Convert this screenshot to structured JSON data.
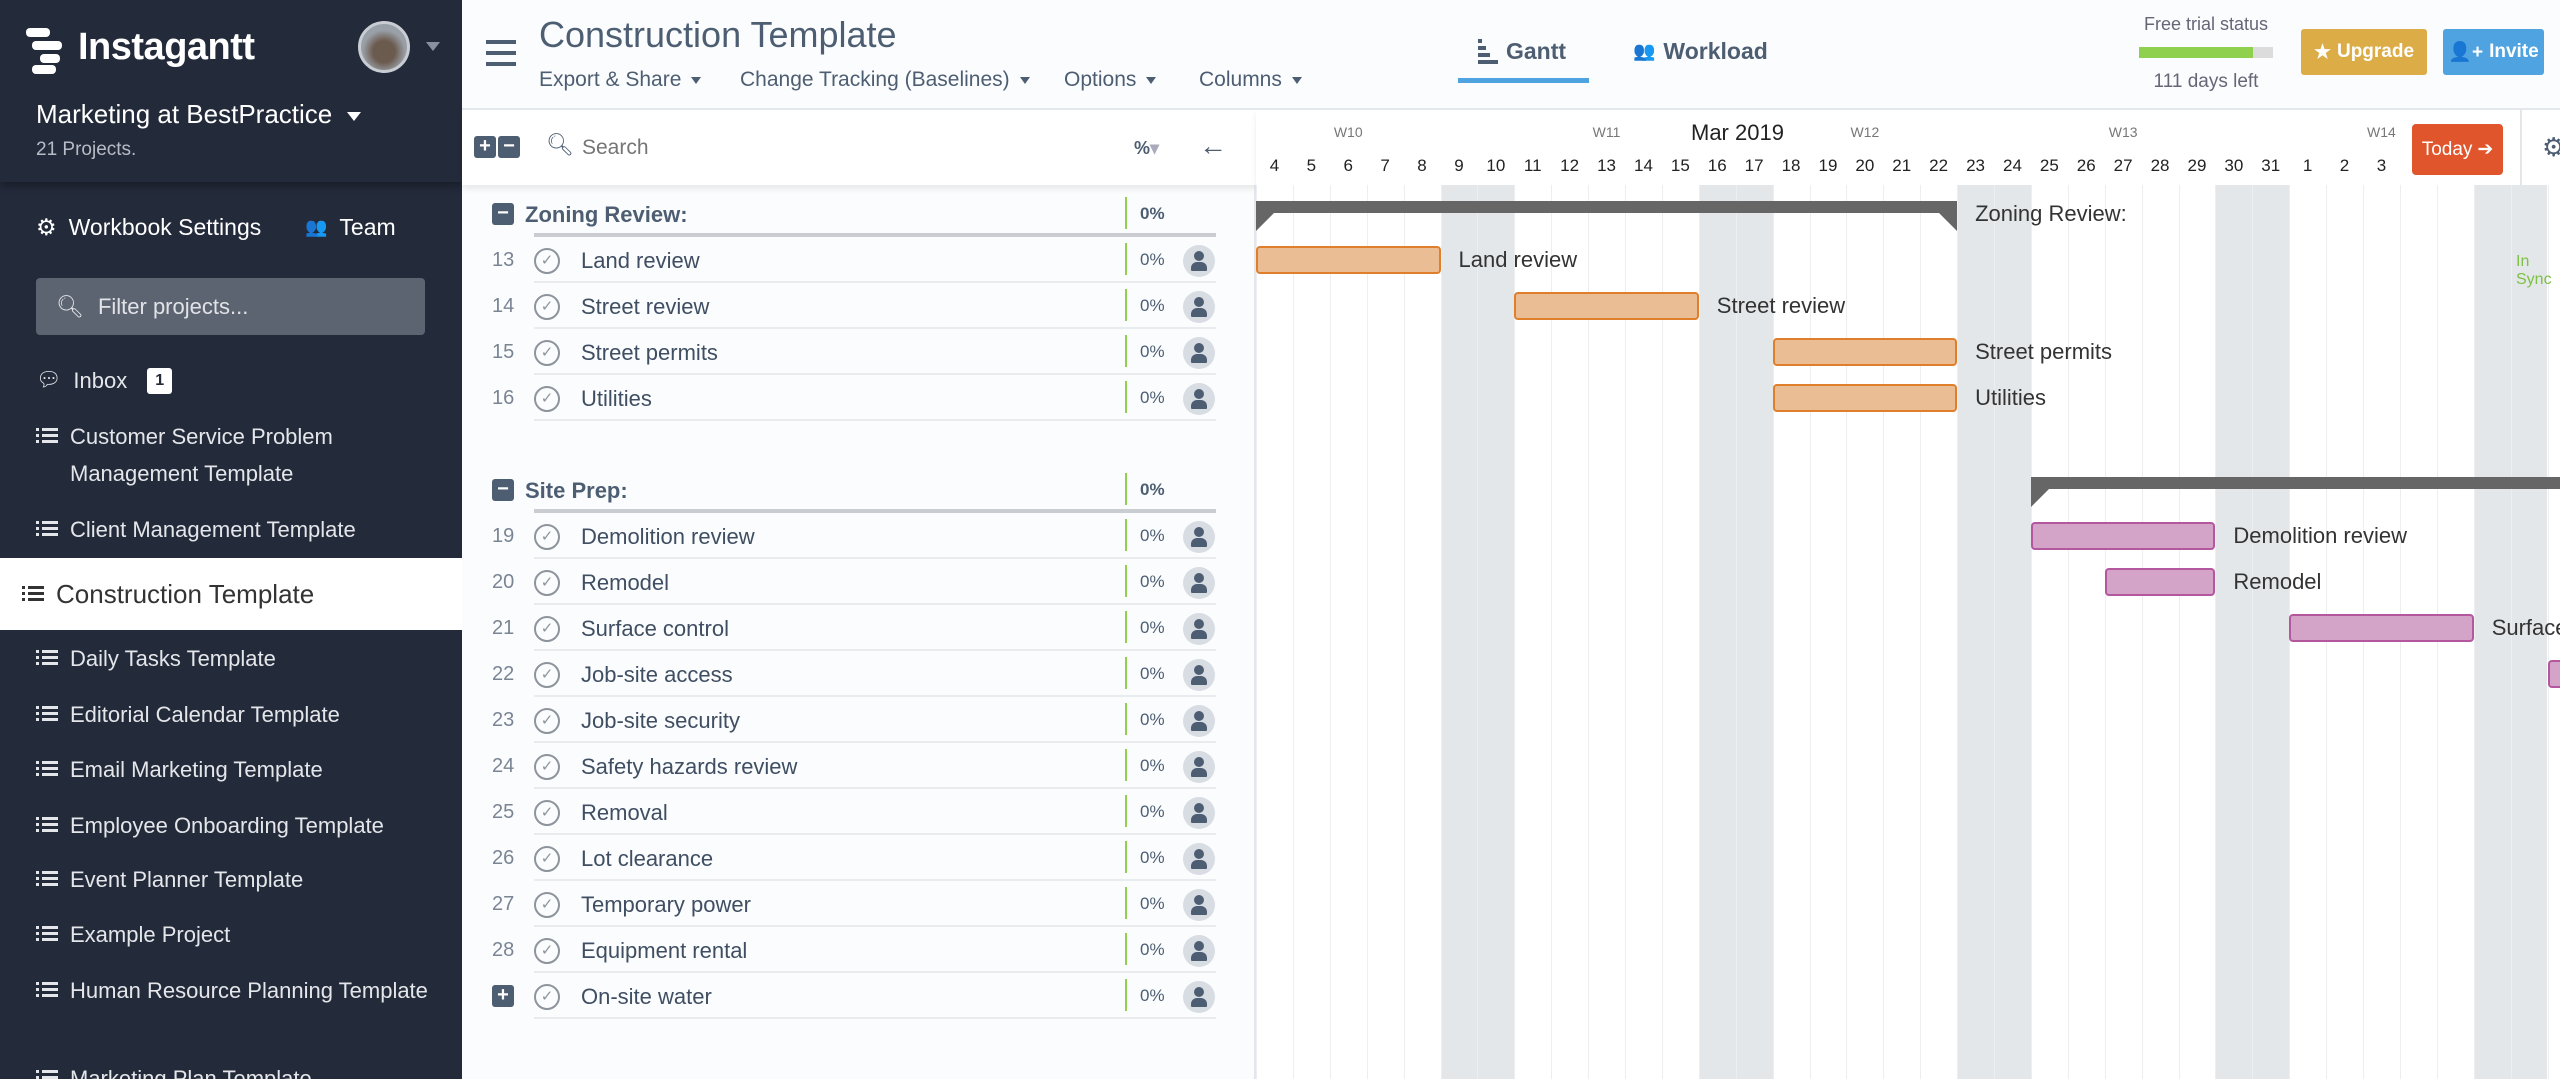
{
  "sidebar": {
    "brand": "Instagantt",
    "workspace": "Marketing at BestPractice",
    "projects_count": "21 Projects.",
    "workbook_settings": "Workbook Settings",
    "team": "Team",
    "filter_placeholder": "Filter projects...",
    "inbox": {
      "label": "Inbox",
      "badge": "1"
    },
    "projects": [
      "Customer Service Problem Management Template",
      "Client Management Template",
      "Construction Template",
      "Daily Tasks Template",
      "Editorial Calendar Template",
      "Email Marketing Template",
      "Employee Onboarding Template",
      "Event Planner Template",
      "Example Project",
      "Human Resource Planning Template",
      "Marketing Plan Template"
    ],
    "active_project": "Construction Template"
  },
  "header": {
    "title": "Construction Template",
    "menus": [
      "Export & Share",
      "Change Tracking (Baselines)",
      "Options",
      "Columns"
    ],
    "tabs": [
      {
        "label": "Gantt",
        "active": true
      },
      {
        "label": "Workload",
        "active": false
      }
    ],
    "trial": {
      "label": "Free trial status",
      "days_left": "111 days left",
      "progress": 0.85
    },
    "upgrade": "Upgrade",
    "invite": "Invite",
    "colors": {
      "upgrade": "#dcad47",
      "invite": "#4fa3e0",
      "trial_bar": "#8fd14f",
      "tab_underline": "#4fa3e0"
    }
  },
  "list": {
    "search_placeholder": "Search",
    "percent_header": "%",
    "groups": [
      {
        "name": "Zoning Review:",
        "pct": "0%",
        "tasks": [
          {
            "num": "13",
            "name": "Land review",
            "pct": "0%",
            "start": "2019-03-04",
            "end": "2019-03-08"
          },
          {
            "num": "14",
            "name": "Street review",
            "pct": "0%",
            "start": "2019-03-11",
            "end": "2019-03-15"
          },
          {
            "num": "15",
            "name": "Street permits",
            "pct": "0%",
            "start": "2019-03-18",
            "end": "2019-03-22"
          },
          {
            "num": "16",
            "name": "Utilities",
            "pct": "0%",
            "start": "2019-03-18",
            "end": "2019-03-22"
          }
        ],
        "start": "2019-03-04",
        "end": "2019-03-22",
        "color": "#ebbd94",
        "border": "#e07f2b"
      },
      {
        "name": "Site Prep:",
        "pct": "0%",
        "tasks": [
          {
            "num": "19",
            "name": "Demolition review",
            "pct": "0%",
            "start": "2019-03-25",
            "end": "2019-03-29"
          },
          {
            "num": "20",
            "name": "Remodel",
            "pct": "0%",
            "start": "2019-03-27",
            "end": "2019-03-29"
          },
          {
            "num": "21",
            "name": "Surface control",
            "pct": "0%",
            "start": "2019-04-01",
            "end": "2019-04-05"
          },
          {
            "num": "22",
            "name": "Job-site access",
            "pct": "0%",
            "start": "2019-04-08",
            "end": "2019-04-12"
          },
          {
            "num": "23",
            "name": "Job-site security",
            "pct": "0%"
          },
          {
            "num": "24",
            "name": "Safety hazards review",
            "pct": "0%"
          },
          {
            "num": "25",
            "name": "Removal",
            "pct": "0%"
          },
          {
            "num": "26",
            "name": "Lot clearance",
            "pct": "0%"
          },
          {
            "num": "27",
            "name": "Temporary power",
            "pct": "0%"
          },
          {
            "num": "28",
            "name": "Equipment rental",
            "pct": "0%"
          },
          {
            "num": "",
            "name": "On-site water",
            "pct": "0%",
            "expandable": true
          }
        ],
        "start": "2019-03-25",
        "end": "2019-04-30",
        "color": "#d4a3c8",
        "border": "#b5579f"
      }
    ]
  },
  "gantt": {
    "month": "Mar 2019",
    "weeks": [
      {
        "label": "W10",
        "day": "6"
      },
      {
        "label": "W11",
        "day": "13"
      },
      {
        "label": "W12",
        "day": "20"
      },
      {
        "label": "W13",
        "day": "27"
      },
      {
        "label": "W14",
        "day": "3"
      }
    ],
    "days": [
      "4",
      "5",
      "6",
      "7",
      "8",
      "9",
      "10",
      "11",
      "12",
      "13",
      "14",
      "15",
      "16",
      "17",
      "18",
      "19",
      "20",
      "21",
      "22",
      "23",
      "24",
      "25",
      "26",
      "27",
      "28",
      "29",
      "30",
      "31",
      "1",
      "2",
      "3"
    ],
    "first_date": "2019-03-04",
    "today": "Today",
    "today_color": "#e0552b",
    "sync_status": "In Sync",
    "sync_color": "#7cc142"
  }
}
